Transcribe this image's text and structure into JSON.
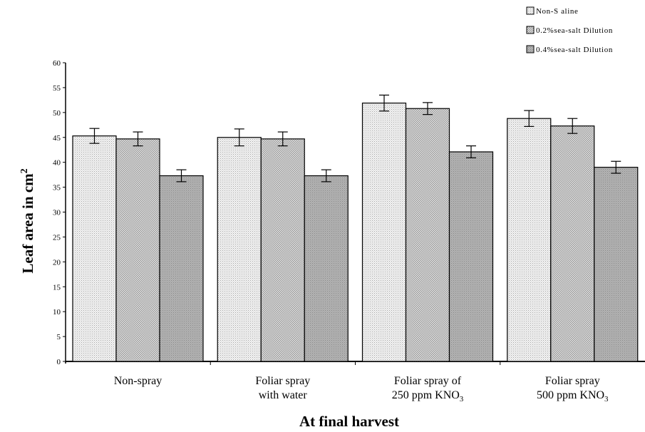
{
  "chart_data": {
    "type": "bar",
    "ylabel": "Leaf area in cm",
    "ylabel_sup": "2",
    "xlabel": "At final harvest",
    "ylim": [
      0,
      60
    ],
    "yticks": [
      0,
      5,
      10,
      15,
      20,
      25,
      30,
      35,
      40,
      45,
      50,
      55,
      60
    ],
    "legend_position": "top-right",
    "grid": false,
    "categories": [
      {
        "lines": [
          {
            "text": "Non-spray"
          }
        ]
      },
      {
        "lines": [
          {
            "text": "Foliar spray"
          },
          {
            "text": "with water"
          }
        ]
      },
      {
        "lines": [
          {
            "text": "Foliar spray of"
          },
          {
            "text": "250 ppm KNO",
            "sub": "3"
          }
        ]
      },
      {
        "lines": [
          {
            "text": "Foliar spray"
          },
          {
            "text": "500 ppm KNO",
            "sub": "3"
          }
        ]
      }
    ],
    "series": [
      {
        "name": "Non-S aline",
        "pattern": "dots",
        "values": [
          45.3,
          45.0,
          51.9,
          48.8
        ],
        "errors": [
          1.5,
          1.7,
          1.6,
          1.6
        ]
      },
      {
        "name": "0.2%sea-salt Dilution",
        "pattern": "checks",
        "values": [
          44.7,
          44.7,
          50.8,
          47.3
        ],
        "errors": [
          1.4,
          1.4,
          1.2,
          1.5
        ]
      },
      {
        "name": "0.4%sea-salt Dilution",
        "pattern": "gray",
        "values": [
          37.3,
          37.3,
          42.1,
          39.0
        ],
        "errors": [
          1.2,
          1.2,
          1.2,
          1.2
        ]
      }
    ]
  }
}
